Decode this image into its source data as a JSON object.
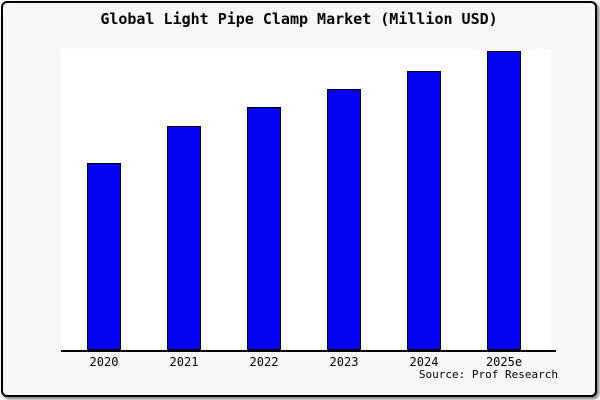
{
  "chart_data": {
    "type": "bar",
    "title": "Global Light Pipe Clamp Market (Million USD)",
    "categories": [
      "2020",
      "2021",
      "2022",
      "2023",
      "2024",
      "2025e"
    ],
    "values": [
      62.5,
      74.9,
      81.3,
      87.6,
      93.6,
      100
    ],
    "value_note": "y-axis shows no tick labels or gridlines; values are relative bar heights indexed to 2025e = 100",
    "xlabel": "",
    "ylabel": "",
    "ylim": [
      0,
      100.5
    ],
    "grid": false,
    "legend_position": "none",
    "bar_color": "#0404f0",
    "bar_border_color": "#000000",
    "plot_background": "#ffffff",
    "panel_background": "#f8f8f8",
    "source": "Source: Prof Research"
  }
}
